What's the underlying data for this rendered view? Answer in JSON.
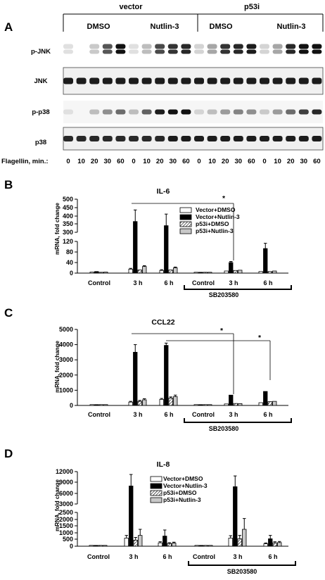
{
  "panel_a": {
    "label": "A",
    "group_headers": [
      "vector",
      "p53i"
    ],
    "treatment_headers": [
      "DMSO",
      "Nutlin-3",
      "DMSO",
      "Nutlin-3"
    ],
    "blots": [
      {
        "label": "p-JNK",
        "intensity": [
          0.05,
          0,
          0.15,
          0.65,
          0.95,
          0.05,
          0.2,
          0.7,
          0.8,
          0.85,
          0.1,
          0.3,
          0.8,
          0.85,
          0.9,
          0.1,
          0.3,
          0.85,
          0.95,
          0.95
        ]
      },
      {
        "label": "JNK",
        "intensity": [
          0.9,
          0.9,
          0.9,
          0.9,
          0.9,
          0.9,
          0.9,
          0.9,
          0.9,
          0.9,
          0.9,
          0.9,
          0.9,
          0.9,
          0.9,
          0.9,
          0.9,
          0.9,
          0.9,
          0.9
        ]
      },
      {
        "label": "p-p38",
        "intensity": [
          0.05,
          0,
          0.2,
          0.4,
          0.55,
          0.2,
          0.6,
          0.9,
          0.95,
          0.95,
          0.1,
          0.2,
          0.35,
          0.45,
          0.4,
          0.15,
          0.35,
          0.55,
          0.75,
          0.85
        ]
      },
      {
        "label": "p38",
        "intensity": [
          0.85,
          0.85,
          0.85,
          0.85,
          0.85,
          0.85,
          0.85,
          0.85,
          0.9,
          0.9,
          0.9,
          0.9,
          0.9,
          0.9,
          0.9,
          0.9,
          0.9,
          0.9,
          0.9,
          0.9
        ]
      }
    ],
    "lane_axis_label": "Flagellin, min.:",
    "lane_values": [
      "0",
      "10",
      "20",
      "30",
      "60",
      "0",
      "10",
      "20",
      "30",
      "60",
      "0",
      "10",
      "20",
      "30",
      "60",
      "0",
      "10",
      "20",
      "30",
      "60"
    ]
  },
  "chart_data": [
    {
      "panel": "B",
      "type": "bar",
      "title": "IL-6",
      "ylabel": "mRNA, fold change",
      "y_ticks_upper": [
        "500",
        "450",
        "400",
        "350",
        "300"
      ],
      "y_ticks_lower": [
        "120",
        "80",
        "40",
        "0"
      ],
      "axis_break": [
        120,
        300
      ],
      "categories": [
        "Control",
        "3 h",
        "6 h",
        "Control",
        "3 h",
        "6 h"
      ],
      "bracket_label": "SB203580",
      "significance": "*",
      "series": [
        {
          "name": "Vector+DMSO",
          "values": [
            4,
            15,
            10,
            2,
            8,
            6
          ],
          "errors": [
            1,
            3,
            3,
            1,
            2,
            1
          ]
        },
        {
          "name": "Vector+Nutlin-3",
          "values": [
            6,
            365,
            340,
            3,
            40,
            93
          ],
          "errors": [
            2,
            70,
            70,
            1,
            4,
            20
          ]
        },
        {
          "name": "p53i+DMSO",
          "values": [
            3,
            12,
            12,
            2,
            10,
            6
          ],
          "errors": [
            1,
            2,
            2,
            1,
            2,
            1
          ]
        },
        {
          "name": "p53i+Nutlin-3",
          "values": [
            4,
            25,
            20,
            3,
            11,
            8
          ],
          "errors": [
            1,
            3,
            3,
            1,
            2,
            2
          ]
        }
      ]
    },
    {
      "panel": "C",
      "type": "bar",
      "title": "CCL22",
      "ylabel": "mRNA, fold change",
      "y_ticks": [
        "5000",
        "4000",
        "3000",
        "2000",
        "1000",
        "0"
      ],
      "ylim": [
        0,
        5000
      ],
      "categories": [
        "Control",
        "3 h",
        "6 h",
        "Control",
        "3 h",
        "6 h"
      ],
      "bracket_label": "SB203580",
      "significance": "*",
      "series": [
        {
          "name": "Vector+DMSO",
          "values": [
            10,
            220,
            400,
            5,
            100,
            180
          ],
          "errors": [
            5,
            50,
            60,
            3,
            20,
            20
          ]
        },
        {
          "name": "Vector+Nutlin-3",
          "values": [
            20,
            3500,
            3950,
            5,
            680,
            920
          ],
          "errors": [
            5,
            500,
            150,
            3,
            40,
            30
          ]
        },
        {
          "name": "p53i+DMSO",
          "values": [
            10,
            270,
            480,
            5,
            130,
            250
          ],
          "errors": [
            5,
            60,
            80,
            3,
            20,
            30
          ]
        },
        {
          "name": "p53i+Nutlin-3",
          "values": [
            15,
            370,
            580,
            5,
            120,
            270
          ],
          "errors": [
            5,
            70,
            100,
            3,
            20,
            30
          ]
        }
      ]
    },
    {
      "panel": "D",
      "type": "bar",
      "title": "IL-8",
      "ylabel": "mRNA, fold change",
      "y_ticks_upper": [
        "12000",
        "9000",
        "6000",
        "3000"
      ],
      "y_ticks_lower": [
        "2500",
        "2000",
        "1500",
        "1000",
        "500",
        "0"
      ],
      "axis_break": [
        2500,
        3000
      ],
      "categories": [
        "Control",
        "3 h",
        "6 h",
        "Control",
        "3 h",
        "6 h"
      ],
      "bracket_label": "SB203580",
      "series": [
        {
          "name": "Vector+DMSO",
          "values": [
            10,
            600,
            250,
            10,
            600,
            180
          ],
          "errors": [
            5,
            200,
            80,
            5,
            180,
            60
          ]
        },
        {
          "name": "Vector+Nutlin-3",
          "values": [
            20,
            8000,
            750,
            20,
            7800,
            550
          ],
          "errors": [
            5,
            3200,
            450,
            5,
            3000,
            250
          ]
        },
        {
          "name": "p53i+DMSO",
          "values": [
            10,
            450,
            200,
            10,
            550,
            250
          ],
          "errors": [
            5,
            200,
            60,
            5,
            250,
            80
          ]
        },
        {
          "name": "p53i+Nutlin-3",
          "values": [
            15,
            800,
            230,
            15,
            1250,
            270
          ],
          "errors": [
            5,
            450,
            70,
            5,
            800,
            80
          ]
        }
      ]
    }
  ]
}
